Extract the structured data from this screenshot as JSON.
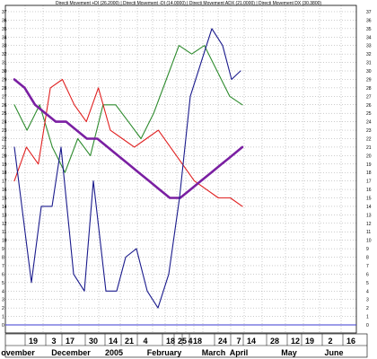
{
  "chart_data": {
    "type": "line",
    "title": "Directi Movement +DI (26.2000) | Directi Movement -DI (14.0000) | Directi Movement ADX (21.0000) | Directi Movement DX (30.3800)",
    "xlabel": "",
    "ylabel": "",
    "ylim": [
      -1,
      38
    ],
    "y_ticks": [
      0,
      1,
      2,
      3,
      4,
      5,
      6,
      7,
      8,
      9,
      10,
      11,
      12,
      13,
      14,
      15,
      16,
      17,
      18,
      19,
      20,
      21,
      22,
      23,
      24,
      25,
      26,
      27,
      28,
      29,
      30,
      31,
      32,
      33,
      34,
      35,
      36,
      37
    ],
    "reference_line": 0,
    "grid": true,
    "legend": "top-center",
    "x_day_labels": [
      "19",
      "3",
      "17",
      "30",
      "14",
      "21",
      "4",
      "18",
      "25",
      "4",
      "18",
      "24",
      "7",
      "14",
      "28",
      "12",
      "19",
      "2",
      "16"
    ],
    "x_month_labels": [
      "ovember",
      "December",
      "2005",
      "February",
      "March",
      "April",
      "May",
      "June"
    ],
    "series": [
      {
        "name": "Directi Movement +DI (26.2000)",
        "color": "#2e8b2e",
        "values": [
          26,
          23,
          26,
          21,
          18,
          22,
          20,
          26,
          26,
          24,
          22,
          25,
          29,
          33,
          32,
          33,
          30,
          27,
          26
        ]
      },
      {
        "name": "Directi Movement -DI (14.0000)",
        "color": "#e02020",
        "values": [
          17,
          21,
          19,
          28,
          29,
          26,
          24,
          28,
          23,
          22,
          21,
          22,
          23,
          21,
          19,
          17,
          16,
          15,
          15,
          14
        ]
      },
      {
        "name": "Directi Movement ADX (21.0000)",
        "color": "#7a1fa2",
        "values": [
          29,
          28,
          26,
          25,
          24,
          24,
          23,
          22,
          22,
          21,
          20,
          19,
          18,
          17,
          16,
          15,
          15,
          16,
          17,
          18,
          19,
          20,
          21
        ]
      },
      {
        "name": "Directi Movement DX (30.3800)",
        "color": "#1a1a8c",
        "values": [
          21,
          5,
          14,
          14,
          21,
          6,
          4,
          17,
          4,
          4,
          8,
          9,
          4,
          2,
          6,
          15,
          27,
          31,
          35,
          33,
          29,
          30
        ]
      }
    ]
  }
}
